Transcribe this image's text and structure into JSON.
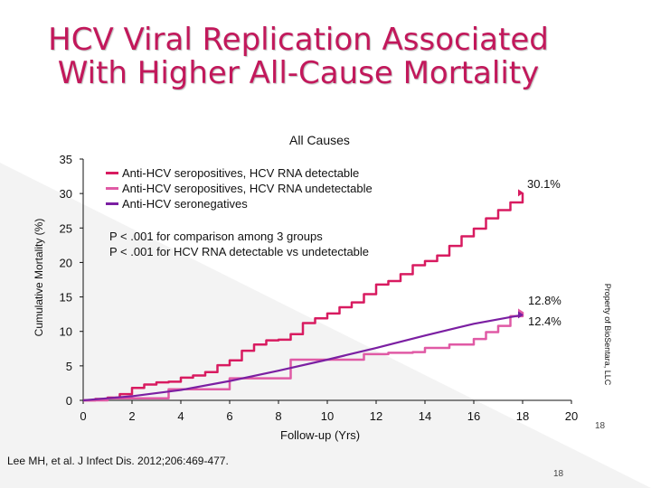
{
  "slide": {
    "title_line1": "HCV Viral Replication Associated",
    "title_line2": "With Higher All-Cause Mortality",
    "citation": "Lee MH, et al. J Infect Dis. 2012;206:469-477.",
    "property_note": "Property of BioSentara, LLC",
    "page_number": "18",
    "page_number_bottom": "18",
    "accent_color": "#c2185b"
  },
  "stats": {
    "line1": "P < .001 for comparison among 3 groups",
    "line2": "P < .001 for HCV RNA detectable vs undetectable"
  },
  "chart_data": {
    "type": "line",
    "title": "All Causes",
    "xlabel": "Follow-up (Yrs)",
    "ylabel": "Cumulative Mortality (%)",
    "xlim": [
      0,
      20
    ],
    "ylim": [
      0,
      35
    ],
    "xticks": [
      0,
      2,
      4,
      6,
      8,
      10,
      12,
      14,
      16,
      18,
      20
    ],
    "yticks": [
      0,
      5,
      10,
      15,
      20,
      25,
      30,
      35
    ],
    "series": [
      {
        "name": "Anti-HCV seropositives, HCV RNA detectable",
        "color": "#d81b60",
        "style": "step",
        "end_label": "30.1%",
        "x": [
          0,
          0.5,
          1,
          1.5,
          2,
          2.5,
          3,
          3.5,
          4,
          4.5,
          5,
          5.5,
          6,
          6.5,
          7,
          7.5,
          8,
          8.5,
          9,
          9.5,
          10,
          10.5,
          11,
          11.5,
          12,
          12.5,
          13,
          13.5,
          14,
          14.5,
          15,
          15.5,
          16,
          16.5,
          17,
          17.5,
          18
        ],
        "values": [
          0,
          0.2,
          0.4,
          0.9,
          1.8,
          2.3,
          2.6,
          2.7,
          3.3,
          3.6,
          4.1,
          5.1,
          5.8,
          7.2,
          8.1,
          8.7,
          8.8,
          9.6,
          11.2,
          11.9,
          12.6,
          13.5,
          14.2,
          15.4,
          16.8,
          17.3,
          18.3,
          19.6,
          20.2,
          21.0,
          22.4,
          23.8,
          24.9,
          26.4,
          27.6,
          28.7,
          30.1
        ]
      },
      {
        "name": "Anti-HCV seropositives, HCV RNA undetectable",
        "color": "#e05aa5",
        "style": "step",
        "end_label": "12.8%",
        "x": [
          0,
          1,
          2,
          3,
          3.5,
          4,
          5,
          6,
          7,
          8,
          8.5,
          9,
          9.5,
          10,
          10.5,
          11,
          11.5,
          12,
          12.5,
          13,
          13.5,
          14,
          14.5,
          15,
          15.5,
          16,
          16.5,
          17,
          17.5,
          18
        ],
        "values": [
          0,
          0.3,
          0.3,
          0.3,
          1.6,
          1.6,
          1.6,
          3.2,
          3.2,
          3.2,
          5.9,
          5.9,
          5.9,
          5.9,
          5.9,
          5.9,
          6.7,
          6.7,
          6.9,
          6.9,
          7.0,
          7.6,
          7.6,
          8.1,
          8.1,
          8.9,
          9.9,
          10.8,
          12.2,
          12.8
        ]
      },
      {
        "name": "Anti-HCV seronegatives",
        "color": "#7b1fa2",
        "style": "smooth",
        "end_label": "12.4%",
        "x": [
          0,
          2,
          4,
          6,
          8,
          10,
          12,
          14,
          16,
          18
        ],
        "values": [
          0,
          0.6,
          1.5,
          2.8,
          4.3,
          5.9,
          7.6,
          9.4,
          11.1,
          12.4
        ]
      }
    ]
  }
}
